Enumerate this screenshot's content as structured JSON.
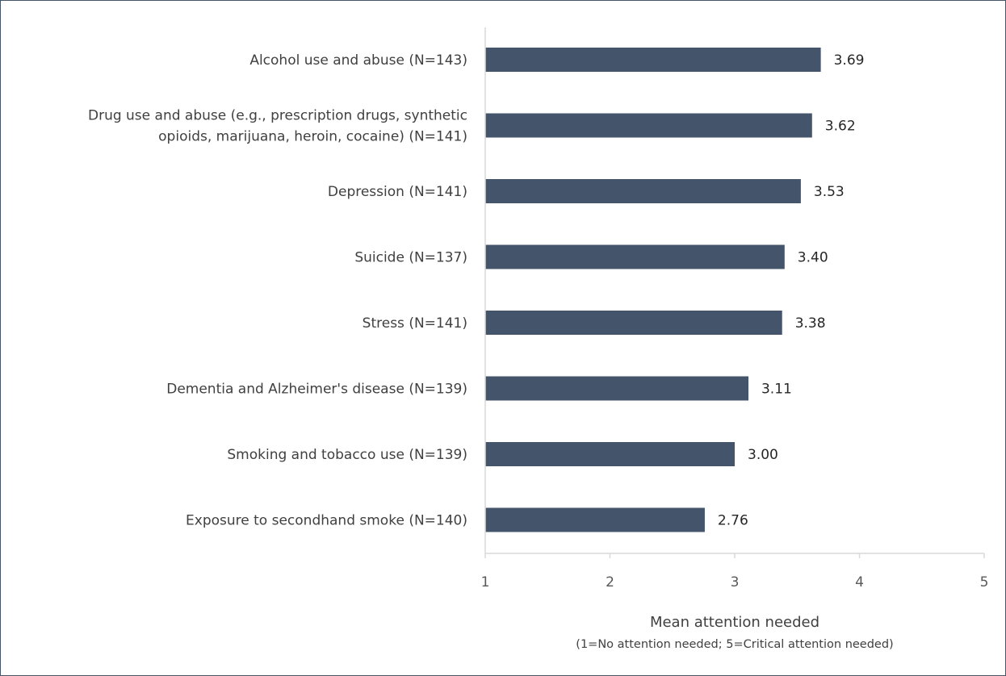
{
  "chart_data": {
    "type": "bar",
    "orientation": "horizontal",
    "categories": [
      [
        "Alcohol use and abuse (N=143)"
      ],
      [
        "Drug use and abuse (e.g., prescription drugs, synthetic",
        "opioids, marijuana, heroin, cocaine) (N=141)"
      ],
      [
        "Depression (N=141)"
      ],
      [
        "Suicide (N=137)"
      ],
      [
        "Stress (N=141)"
      ],
      [
        "Dementia and Alzheimer's disease (N=139)"
      ],
      [
        "Smoking and tobacco use (N=139)"
      ],
      [
        "Exposure to secondhand smoke (N=140)"
      ]
    ],
    "values": [
      3.69,
      3.62,
      3.53,
      3.4,
      3.38,
      3.11,
      3.0,
      2.76
    ],
    "value_labels": [
      "3.69",
      "3.62",
      "3.53",
      "3.40",
      "3.38",
      "3.11",
      "3.00",
      "2.76"
    ],
    "xlim": [
      1,
      5
    ],
    "x_ticks": [
      "1",
      "2",
      "3",
      "4",
      "5"
    ],
    "xlabel": "Mean attention needed",
    "xlabel_note": "(1=No attention needed; 5=Critical attention needed)",
    "bar_color": "#44546a",
    "axis_color": "#d9d9d9",
    "frame_color": "#44546a",
    "grid": false,
    "legend": "none"
  }
}
